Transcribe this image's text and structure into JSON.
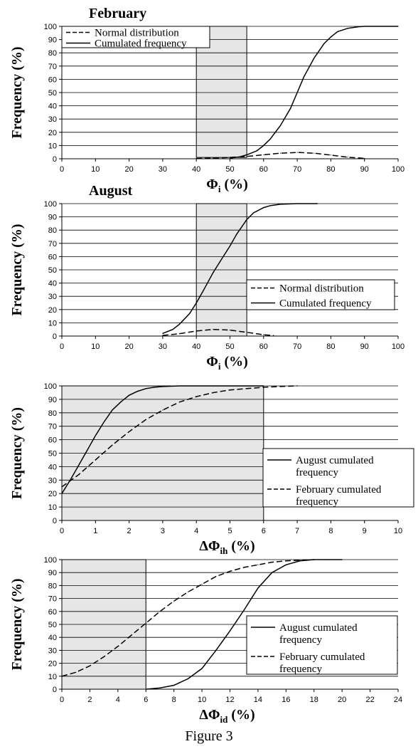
{
  "figure_caption": "Figure 3",
  "chart_data": [
    {
      "type": "line",
      "title": "February",
      "xlabel": "Φ",
      "xlabel_sub": "i",
      "xlabel_unit": "(%)",
      "ylabel": "Frequency (%)",
      "xlim": [
        0,
        100
      ],
      "ylim": [
        0,
        100
      ],
      "xticks": [
        0,
        10,
        20,
        30,
        40,
        50,
        60,
        70,
        80,
        90,
        100
      ],
      "yticks": [
        0,
        10,
        20,
        30,
        40,
        50,
        60,
        70,
        80,
        90,
        100
      ],
      "grid": "horizontal",
      "highlight_range": [
        40,
        55
      ],
      "highlight_y": [
        1,
        100
      ],
      "legend_position": "top-left",
      "series": [
        {
          "name": "Normal distribution",
          "style": "dashed",
          "x": [
            40,
            45,
            50,
            55,
            60,
            65,
            70,
            75,
            80,
            85,
            90
          ],
          "y": [
            0.2,
            0.5,
            1.0,
            1.8,
            3.0,
            4.2,
            4.8,
            4.2,
            2.8,
            1.2,
            0.3
          ]
        },
        {
          "name": "Cumulated frequency",
          "style": "solid",
          "x": [
            50,
            53,
            55,
            58,
            60,
            62,
            65,
            68,
            70,
            72,
            75,
            78,
            80,
            82,
            85,
            88,
            90,
            95,
            100
          ],
          "y": [
            0.5,
            1.5,
            3,
            6,
            10,
            15,
            25,
            38,
            50,
            62,
            76,
            87,
            92,
            96,
            98.5,
            99.6,
            100,
            100,
            100
          ]
        }
      ]
    },
    {
      "type": "line",
      "title": "August",
      "xlabel": "Φ",
      "xlabel_sub": "i",
      "xlabel_unit": "(%)",
      "ylabel": "Frequency (%)",
      "xlim": [
        0,
        100
      ],
      "ylim": [
        0,
        100
      ],
      "xticks": [
        0,
        10,
        20,
        30,
        40,
        50,
        60,
        70,
        80,
        90,
        100
      ],
      "yticks": [
        0,
        10,
        20,
        30,
        40,
        50,
        60,
        70,
        80,
        90,
        100
      ],
      "grid": "horizontal",
      "highlight_range": [
        40,
        55
      ],
      "highlight_y": [
        0,
        100
      ],
      "legend_position": "right",
      "series": [
        {
          "name": "Normal distribution",
          "style": "dashed",
          "x": [
            30,
            35,
            40,
            45,
            50,
            55,
            60,
            63
          ],
          "y": [
            0.5,
            1.8,
            3.8,
            5.0,
            4.5,
            2.8,
            1.0,
            0.3
          ]
        },
        {
          "name": "Cumulated frequency",
          "style": "solid",
          "x": [
            30,
            33,
            35,
            38,
            40,
            42,
            45,
            48,
            50,
            52,
            55,
            57,
            60,
            62,
            65,
            70,
            76
          ],
          "y": [
            2,
            5,
            9,
            17,
            25,
            34,
            48,
            60,
            68,
            77,
            88,
            93,
            97,
            98.5,
            99.5,
            100,
            100
          ]
        }
      ]
    },
    {
      "type": "line",
      "title": "",
      "xlabel": "ΔΦ",
      "xlabel_sub": "ih",
      "xlabel_unit": "(%)",
      "ylabel": "Frequency (%)",
      "xlim": [
        0,
        10
      ],
      "ylim": [
        0,
        100
      ],
      "xticks": [
        0,
        1,
        2,
        3,
        4,
        5,
        6,
        7,
        8,
        9,
        10
      ],
      "yticks": [
        0,
        10,
        20,
        30,
        40,
        50,
        60,
        70,
        80,
        90,
        100
      ],
      "grid": "horizontal",
      "highlight_range": [
        0,
        6
      ],
      "highlight_y": [
        0,
        100
      ],
      "legend_position": "right",
      "series": [
        {
          "name": "August cumulated frequency",
          "style": "solid",
          "x": [
            0,
            0.25,
            0.5,
            0.75,
            1.0,
            1.25,
            1.5,
            1.75,
            2.0,
            2.25,
            2.5,
            2.75,
            3.0,
            3.5,
            4.0,
            5.0,
            6.0
          ],
          "y": [
            20,
            30,
            41,
            52,
            63,
            73,
            82,
            88,
            93,
            96,
            98,
            99,
            99.5,
            100,
            100,
            100,
            100
          ]
        },
        {
          "name": "February cumulated frequency",
          "style": "dashed",
          "x": [
            0,
            0.5,
            1.0,
            1.5,
            2.0,
            2.5,
            3.0,
            3.5,
            4.0,
            4.5,
            5.0,
            5.5,
            6.0,
            6.5,
            7.0
          ],
          "y": [
            25,
            34,
            45,
            56,
            66,
            75,
            82,
            88,
            92,
            95,
            97,
            98,
            99,
            99.5,
            100
          ]
        }
      ]
    },
    {
      "type": "line",
      "title": "",
      "xlabel": "ΔΦ",
      "xlabel_sub": "id",
      "xlabel_unit": "(%)",
      "ylabel": "Frequency (%)",
      "xlim": [
        0,
        24
      ],
      "ylim": [
        0,
        100
      ],
      "xticks": [
        0,
        2,
        4,
        6,
        8,
        10,
        12,
        14,
        16,
        18,
        20,
        22,
        24
      ],
      "yticks": [
        0,
        10,
        20,
        30,
        40,
        50,
        60,
        70,
        80,
        90,
        100
      ],
      "grid": "horizontal",
      "highlight_range": [
        0,
        6
      ],
      "highlight_y": [
        0,
        100
      ],
      "legend_position": "right",
      "series": [
        {
          "name": "August cumulated frequency",
          "style": "solid",
          "x": [
            6,
            7,
            8,
            9,
            10,
            11,
            12,
            13,
            14,
            15,
            16,
            17,
            18,
            19,
            20
          ],
          "y": [
            0,
            1,
            3,
            8,
            16,
            30,
            45,
            61,
            78,
            90,
            96,
            99,
            100,
            100,
            100
          ]
        },
        {
          "name": "February cumulated frequency",
          "style": "dashed",
          "x": [
            0,
            1,
            2,
            3,
            4,
            5,
            6,
            7,
            8,
            9,
            10,
            11,
            12,
            13,
            14,
            15,
            16,
            17,
            18
          ],
          "y": [
            10,
            13,
            18,
            25,
            33,
            42,
            51,
            60,
            68,
            75,
            81,
            87,
            91,
            94,
            96,
            98,
            99,
            99.5,
            100
          ]
        }
      ]
    }
  ]
}
